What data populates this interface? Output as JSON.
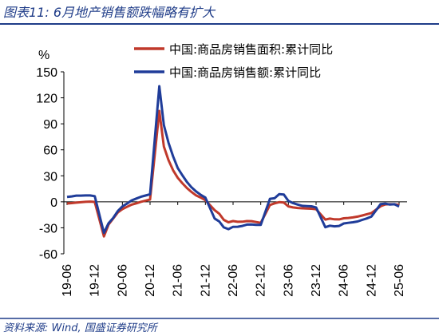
{
  "header": {
    "title": "图表11: 6月地产销售额跌幅略有扩大"
  },
  "footer": {
    "source": "资料来源: Wind, 国盛证券研究所"
  },
  "colors": {
    "accent": "#1f3c88",
    "series_area": "#c0392b",
    "series_amount": "#1f3c99"
  },
  "chart_data": {
    "type": "line",
    "ylabel": "%",
    "ylim": [
      -60,
      150
    ],
    "yticks": [
      150,
      120,
      90,
      60,
      30,
      0,
      -30,
      -60
    ],
    "xtick_labels": [
      "19-06",
      "19-12",
      "20-06",
      "20-12",
      "21-06",
      "21-12",
      "22-06",
      "22-12",
      "23-06",
      "23-12",
      "24-06",
      "24-12",
      "25-06"
    ],
    "legend_position": "top-right",
    "grid": false,
    "series": [
      {
        "name": "中国:商品房销售面积:累计同比",
        "color": "#c0392b",
        "points": [
          [
            "2019-06",
            -2
          ],
          [
            "2019-07",
            -1.5
          ],
          [
            "2019-08",
            -1
          ],
          [
            "2019-09",
            -0.5
          ],
          [
            "2019-10",
            0
          ],
          [
            "2019-11",
            0.2
          ],
          [
            "2019-12",
            -0.1
          ],
          [
            "2020-02",
            -39.9
          ],
          [
            "2020-03",
            -26.3
          ],
          [
            "2020-04",
            -19.3
          ],
          [
            "2020-05",
            -12.3
          ],
          [
            "2020-06",
            -8.4
          ],
          [
            "2020-07",
            -5.8
          ],
          [
            "2020-08",
            -3.3
          ],
          [
            "2020-09",
            -1.8
          ],
          [
            "2020-10",
            0
          ],
          [
            "2020-11",
            1.3
          ],
          [
            "2020-12",
            2.6
          ],
          [
            "2021-02",
            104.9
          ],
          [
            "2021-03",
            63.8
          ],
          [
            "2021-04",
            48.1
          ],
          [
            "2021-05",
            36.3
          ],
          [
            "2021-06",
            27.7
          ],
          [
            "2021-07",
            21.5
          ],
          [
            "2021-08",
            15.9
          ],
          [
            "2021-09",
            11.3
          ],
          [
            "2021-10",
            7.3
          ],
          [
            "2021-11",
            4.8
          ],
          [
            "2021-12",
            1.9
          ],
          [
            "2022-02",
            -9.6
          ],
          [
            "2022-03",
            -13.8
          ],
          [
            "2022-04",
            -20.9
          ],
          [
            "2022-05",
            -23.6
          ],
          [
            "2022-06",
            -22.2
          ],
          [
            "2022-07",
            -23.1
          ],
          [
            "2022-08",
            -23
          ],
          [
            "2022-09",
            -22.2
          ],
          [
            "2022-10",
            -22.3
          ],
          [
            "2022-11",
            -23.3
          ],
          [
            "2022-12",
            -24.3
          ],
          [
            "2023-02",
            -3.6
          ],
          [
            "2023-03",
            -1.8
          ],
          [
            "2023-04",
            -0.4
          ],
          [
            "2023-05",
            -0.9
          ],
          [
            "2023-06",
            -5.3
          ],
          [
            "2023-07",
            -6.5
          ],
          [
            "2023-08",
            -7.1
          ],
          [
            "2023-09",
            -7.5
          ],
          [
            "2023-10",
            -7.8
          ],
          [
            "2023-11",
            -8
          ],
          [
            "2023-12",
            -8.5
          ],
          [
            "2024-02",
            -20.5
          ],
          [
            "2024-03",
            -19.4
          ],
          [
            "2024-04",
            -20.2
          ],
          [
            "2024-05",
            -20.3
          ],
          [
            "2024-06",
            -19
          ],
          [
            "2024-07",
            -18.6
          ],
          [
            "2024-08",
            -18
          ],
          [
            "2024-09",
            -17.1
          ],
          [
            "2024-10",
            -15.8
          ],
          [
            "2024-11",
            -14.3
          ],
          [
            "2024-12",
            -12.9
          ],
          [
            "2025-02",
            -5.1
          ],
          [
            "2025-03",
            -3
          ],
          [
            "2025-04",
            -2.8
          ],
          [
            "2025-05",
            -2.9
          ],
          [
            "2025-06",
            -3.5
          ]
        ]
      },
      {
        "name": "中国:商品房销售额:累计同比",
        "color": "#1f3c99",
        "points": [
          [
            "2019-06",
            5.6
          ],
          [
            "2019-07",
            6.2
          ],
          [
            "2019-08",
            7.1
          ],
          [
            "2019-09",
            7.1
          ],
          [
            "2019-10",
            7.3
          ],
          [
            "2019-11",
            7.3
          ],
          [
            "2019-12",
            6.5
          ],
          [
            "2020-02",
            -35.9
          ],
          [
            "2020-03",
            -24.7
          ],
          [
            "2020-04",
            -18.6
          ],
          [
            "2020-05",
            -10.6
          ],
          [
            "2020-06",
            -5.4
          ],
          [
            "2020-07",
            -2.1
          ],
          [
            "2020-08",
            1.6
          ],
          [
            "2020-09",
            3.7
          ],
          [
            "2020-10",
            5.8
          ],
          [
            "2020-11",
            7.2
          ],
          [
            "2020-12",
            8.7
          ],
          [
            "2021-02",
            133.4
          ],
          [
            "2021-03",
            88.5
          ],
          [
            "2021-04",
            68.2
          ],
          [
            "2021-05",
            52.4
          ],
          [
            "2021-06",
            38.9
          ],
          [
            "2021-07",
            30.7
          ],
          [
            "2021-08",
            22.9
          ],
          [
            "2021-09",
            16.6
          ],
          [
            "2021-10",
            11.8
          ],
          [
            "2021-11",
            8
          ],
          [
            "2021-12",
            4.8
          ],
          [
            "2022-02",
            -19.3
          ],
          [
            "2022-03",
            -22.7
          ],
          [
            "2022-04",
            -29.5
          ],
          [
            "2022-05",
            -31.5
          ],
          [
            "2022-06",
            -28.9
          ],
          [
            "2022-07",
            -28.8
          ],
          [
            "2022-08",
            -27.9
          ],
          [
            "2022-09",
            -26.3
          ],
          [
            "2022-10",
            -26.1
          ],
          [
            "2022-11",
            -26.6
          ],
          [
            "2022-12",
            -26.7
          ],
          [
            "2023-02",
            3.5
          ],
          [
            "2023-03",
            4.1
          ],
          [
            "2023-04",
            8.8
          ],
          [
            "2023-05",
            8.4
          ],
          [
            "2023-06",
            1.1
          ],
          [
            "2023-07",
            -1.5
          ],
          [
            "2023-08",
            -3.2
          ],
          [
            "2023-09",
            -4.6
          ],
          [
            "2023-10",
            -4.9
          ],
          [
            "2023-11",
            -5.2
          ],
          [
            "2023-12",
            -6.5
          ],
          [
            "2024-02",
            -29.3
          ],
          [
            "2024-03",
            -27.6
          ],
          [
            "2024-04",
            -28.3
          ],
          [
            "2024-05",
            -27.9
          ],
          [
            "2024-06",
            -25
          ],
          [
            "2024-07",
            -24.3
          ],
          [
            "2024-08",
            -23.6
          ],
          [
            "2024-09",
            -22.7
          ],
          [
            "2024-10",
            -20.9
          ],
          [
            "2024-11",
            -19.2
          ],
          [
            "2024-12",
            -17.1
          ],
          [
            "2025-02",
            -2.6
          ],
          [
            "2025-03",
            -2.1
          ],
          [
            "2025-04",
            -3.2
          ],
          [
            "2025-05",
            -2.8
          ],
          [
            "2025-06",
            -5.5
          ]
        ]
      }
    ]
  }
}
